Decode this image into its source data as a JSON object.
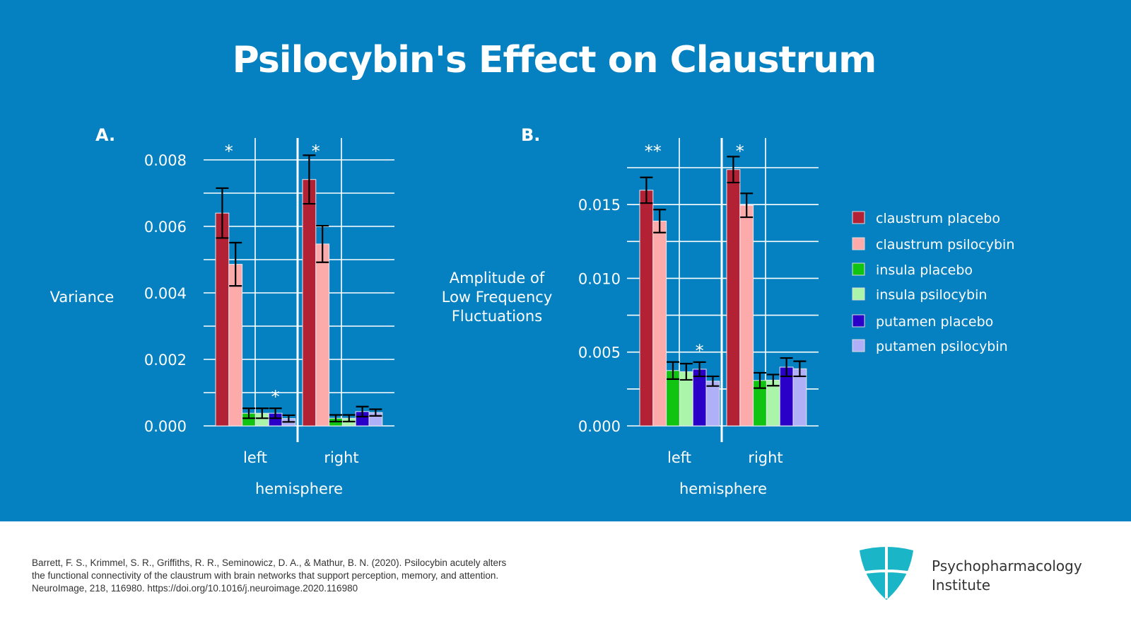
{
  "title": "Psilocybin's Effect on Claustrum",
  "legend": [
    {
      "label": "claustrum placebo",
      "color": "#b22234"
    },
    {
      "label": "claustrum psilocybin",
      "color": "#fcaaaa"
    },
    {
      "label": "insula placebo",
      "color": "#11c411"
    },
    {
      "label": "insula psilocybin",
      "color": "#aaf5aa"
    },
    {
      "label": "putamen placebo",
      "color": "#2a00c8"
    },
    {
      "label": "putamen psilocybin",
      "color": "#b0b0f8"
    }
  ],
  "chart_data": [
    {
      "type": "bar",
      "panel": "A.",
      "ylabel": "Variance",
      "xlabel": "hemisphere",
      "categories": [
        "left",
        "right"
      ],
      "ylim": [
        0,
        0.008
      ],
      "grid": true,
      "yticks": [
        "0.000",
        "0.002",
        "0.004",
        "0.006",
        "0.008"
      ],
      "series": [
        {
          "name": "claustrum placebo",
          "values": [
            0.0064,
            0.00741
          ],
          "se": [
            0.00075,
            0.00073
          ]
        },
        {
          "name": "claustrum psilocybin",
          "values": [
            0.00486,
            0.00547
          ],
          "se": [
            0.00065,
            0.00055
          ]
        },
        {
          "name": "insula placebo",
          "values": [
            0.00038,
            0.00023
          ],
          "se": [
            0.00015,
            0.0001
          ]
        },
        {
          "name": "insula psilocybin",
          "values": [
            0.00038,
            0.00023
          ],
          "se": [
            0.00015,
            0.0001
          ]
        },
        {
          "name": "putamen placebo",
          "values": [
            0.00038,
            0.00043
          ],
          "se": [
            0.00015,
            0.00015
          ]
        },
        {
          "name": "putamen psilocybin",
          "values": [
            0.00022,
            0.0004
          ],
          "se": [
            0.0001,
            0.0001
          ]
        }
      ],
      "annotations": [
        {
          "text": "*",
          "category": "left",
          "series": "claustrum placebo",
          "level": "top"
        },
        {
          "text": "*",
          "category": "right",
          "series": "claustrum placebo",
          "level": "top"
        },
        {
          "text": "*",
          "category": "left",
          "series": "putamen placebo",
          "level": "bar"
        }
      ]
    },
    {
      "type": "bar",
      "panel": "B.",
      "ylabel": "Amplitude of Low Frequency Fluctuations",
      "ylabel_lines": [
        "Amplitude of",
        "Low Frequency",
        "Fluctuations"
      ],
      "xlabel": "hemisphere",
      "categories": [
        "left",
        "right"
      ],
      "ylim": [
        0,
        0.0175
      ],
      "grid": true,
      "yticks": [
        "0.000",
        "0.005",
        "0.010",
        "0.015"
      ],
      "series": [
        {
          "name": "claustrum placebo",
          "values": [
            0.01597,
            0.01737
          ],
          "se": [
            0.00087,
            0.00088
          ]
        },
        {
          "name": "claustrum psilocybin",
          "values": [
            0.01388,
            0.01495
          ],
          "se": [
            0.00078,
            0.00081
          ]
        },
        {
          "name": "insula placebo",
          "values": [
            0.00375,
            0.00308
          ],
          "se": [
            0.00058,
            0.00052
          ]
        },
        {
          "name": "insula psilocybin",
          "values": [
            0.00367,
            0.0031
          ],
          "se": [
            0.00055,
            0.00038
          ]
        },
        {
          "name": "putamen placebo",
          "values": [
            0.00384,
            0.00398
          ],
          "se": [
            0.00048,
            0.00062
          ]
        },
        {
          "name": "putamen psilocybin",
          "values": [
            0.00303,
            0.00387
          ],
          "se": [
            0.00033,
            0.00051
          ]
        }
      ],
      "annotations": [
        {
          "text": "**",
          "category": "left",
          "series": "claustrum placebo",
          "level": "top"
        },
        {
          "text": "*",
          "category": "right",
          "series": "claustrum placebo",
          "level": "top"
        },
        {
          "text": "*",
          "category": "left",
          "series": "putamen placebo",
          "level": "bar"
        }
      ]
    }
  ],
  "footer": {
    "citation_lines": [
      "Barrett, F. S., Krimmel, S. R., Griffiths, R. R., Seminowicz, D. A., & Mathur, B. N. (2020). Psilocybin acutely alters",
      "the functional connectivity of the claustrum with brain networks that support perception, memory, and attention.",
      "NeuroImage, 218, 116980. https://doi.org/10.1016/j.neuroimage.2020.116980"
    ],
    "brand_lines": [
      "Psychopharmacology",
      "Institute"
    ],
    "logo_color": "#1ab6c8"
  }
}
